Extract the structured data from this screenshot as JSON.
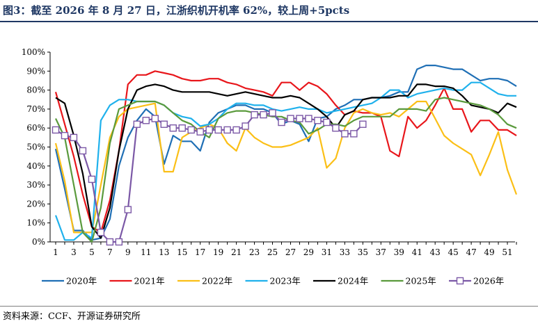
{
  "title": "图3：截至 2026 年 8 月 27 日，江浙织机开机率 62%，较上周+5pcts",
  "source": "资料来源：CCF、开源证券研究所",
  "chart_data": {
    "type": "line",
    "xlim": [
      1,
      52
    ],
    "ylim": [
      0,
      100
    ],
    "x_ticks": [
      1,
      3,
      5,
      7,
      9,
      11,
      13,
      15,
      17,
      19,
      21,
      23,
      25,
      27,
      29,
      31,
      33,
      35,
      37,
      39,
      41,
      43,
      45,
      47,
      49,
      51
    ],
    "y_ticks": [
      "0%",
      "10%",
      "20%",
      "30%",
      "40%",
      "50%",
      "60%",
      "70%",
      "80%",
      "90%",
      "100%"
    ],
    "legend_position": "bottom",
    "series": [
      {
        "name": "2020年",
        "color": "#1f6fb5",
        "markers": false,
        "values": [
          49,
          28,
          6,
          6,
          1,
          2,
          12,
          40,
          55,
          64,
          70,
          66,
          41,
          56,
          53,
          53,
          48,
          63,
          68,
          70,
          72,
          72,
          70,
          70,
          68,
          62,
          64,
          62,
          53,
          65,
          66,
          70,
          72,
          75,
          75,
          76,
          76,
          77,
          79,
          79,
          91,
          93,
          93,
          92,
          91,
          91,
          88,
          85,
          86,
          86,
          85,
          82
        ]
      },
      {
        "name": "2021年",
        "color": "#e8161b",
        "markers": false,
        "values": [
          79,
          62,
          45,
          25,
          8,
          5,
          22,
          48,
          83,
          88,
          88,
          90,
          89,
          88,
          86,
          85,
          85,
          86,
          86,
          84,
          83,
          81,
          80,
          79,
          77,
          84,
          84,
          80,
          84,
          82,
          78,
          72,
          67,
          69,
          68,
          68,
          66,
          48,
          45,
          66,
          60,
          64,
          72,
          81,
          70,
          70,
          58,
          64,
          64,
          59,
          59,
          56
        ]
      },
      {
        "name": "2022年",
        "color": "#fbbf16",
        "markers": false,
        "values": [
          52,
          32,
          5,
          5,
          5,
          30,
          55,
          66,
          70,
          71,
          72,
          73,
          37,
          37,
          55,
          58,
          60,
          62,
          60,
          52,
          48,
          60,
          55,
          52,
          50,
          50,
          51,
          53,
          55,
          60,
          39,
          44,
          60,
          68,
          70,
          68,
          67,
          68,
          66,
          70,
          74,
          74,
          65,
          56,
          52,
          49,
          46,
          35,
          46,
          58,
          38,
          25
        ]
      },
      {
        "name": "2023年",
        "color": "#1fb1ec",
        "markers": false,
        "values": [
          14,
          1,
          1,
          5,
          2,
          64,
          72,
          75,
          75,
          74,
          74,
          74,
          72,
          68,
          66,
          65,
          61,
          62,
          65,
          70,
          73,
          73,
          72,
          72,
          70,
          69,
          70,
          71,
          70,
          70,
          68,
          69,
          70,
          71,
          72,
          73,
          76,
          80,
          80,
          76,
          78,
          79,
          80,
          81,
          80,
          80,
          84,
          84,
          81,
          78,
          77,
          77
        ]
      },
      {
        "name": "2024年",
        "color": "#000000",
        "markers": false,
        "values": [
          76,
          73,
          56,
          36,
          8,
          2,
          18,
          48,
          70,
          80,
          82,
          83,
          82,
          80,
          79,
          79,
          79,
          79,
          78,
          77,
          78,
          79,
          78,
          77,
          76,
          76,
          77,
          76,
          73,
          70,
          66,
          60,
          67,
          69,
          75,
          76,
          76,
          76,
          77,
          77,
          83,
          83,
          82,
          82,
          81,
          77,
          72,
          71,
          70,
          68,
          73,
          71
        ]
      },
      {
        "name": "2025年",
        "color": "#5a9a3c",
        "markers": false,
        "values": [
          65,
          55,
          30,
          5,
          0,
          18,
          52,
          70,
          72,
          74,
          74,
          74,
          72,
          68,
          64,
          62,
          58,
          55,
          65,
          68,
          69,
          69,
          68,
          67,
          66,
          66,
          64,
          63,
          57,
          59,
          62,
          62,
          61,
          64,
          66,
          66,
          66,
          66,
          70,
          70,
          70,
          69,
          75,
          76,
          75,
          74,
          73,
          72,
          70,
          67,
          62,
          60
        ]
      },
      {
        "name": "2026年",
        "color": "#7b58a6",
        "markers": true,
        "values": [
          59,
          56,
          55,
          48,
          33,
          5,
          0,
          0,
          17,
          62,
          64,
          65,
          62,
          60,
          60,
          59,
          58,
          59,
          59,
          59,
          59,
          61,
          67,
          67,
          68,
          63,
          65,
          65,
          65,
          64,
          63,
          60,
          57,
          57,
          62
        ]
      }
    ]
  }
}
